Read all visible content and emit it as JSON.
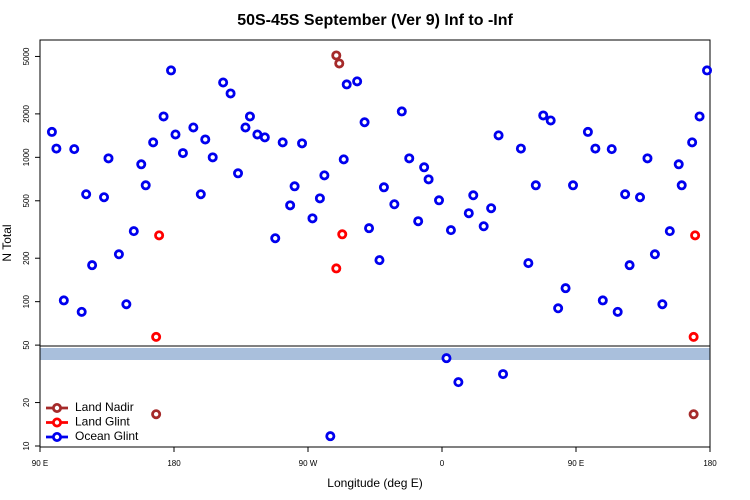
{
  "chart_data": {
    "type": "scatter",
    "title": "50S-45S September (Ver 9)   Inf to -Inf",
    "xlabel": "Longitude (deg E)",
    "ylabel": "N Total",
    "xlim": [
      90,
      540
    ],
    "xticks": [
      {
        "value": 90,
        "label": "90 E"
      },
      180,
      {
        "value": 270,
        "label": "90 W"
      },
      {
        "value": 360,
        "label": "0"
      },
      {
        "value": 450,
        "label": "90 E"
      },
      {
        "value": 540,
        "label": "180"
      }
    ],
    "ylim": [
      10,
      6500
    ],
    "yticks": [
      10,
      20,
      50,
      100,
      200,
      500,
      1000,
      2000,
      5000
    ],
    "log_y": true,
    "legend": "lower left",
    "series": [
      {
        "name": "Land Nadir",
        "color": "#a52a2a",
        "x": [
          289,
          291,
          168,
          529
        ],
        "values": [
          5080,
          4470,
          16.6,
          16.6
        ]
      },
      {
        "name": "Land Glint",
        "color": "#ff0000",
        "x": [
          170,
          289,
          293,
          168,
          529,
          530
        ],
        "values": [
          288,
          170,
          293,
          57,
          57,
          288
        ]
      },
      {
        "name": "Ocean Glint",
        "color": "#0000ee",
        "x": [
          98,
          101,
          106,
          113,
          118,
          121,
          125,
          133,
          136,
          143,
          148,
          153,
          158,
          161,
          166,
          173,
          178,
          181,
          186,
          193,
          198,
          201,
          206,
          213,
          218,
          223,
          228,
          231,
          236,
          241,
          248,
          253,
          258,
          261,
          266,
          273,
          278,
          281,
          294,
          296,
          303,
          308,
          311,
          318,
          321,
          328,
          333,
          338,
          344,
          348,
          351,
          358,
          363,
          366,
          371,
          378,
          381,
          388,
          393,
          398,
          401,
          413,
          418,
          423,
          428,
          433,
          438,
          443,
          448,
          458,
          463,
          468,
          474,
          478,
          483,
          486,
          493,
          498,
          503,
          508,
          513,
          519,
          521,
          528,
          533,
          538,
          285
        ],
        "values": [
          1500,
          1150,
          102,
          1140,
          85,
          555,
          179,
          529,
          984,
          213,
          96,
          308,
          895,
          640,
          1270,
          1920,
          4000,
          1440,
          1070,
          1610,
          555,
          1330,
          1000,
          3300,
          2770,
          775,
          1610,
          1920,
          1440,
          1375,
          275,
          1270,
          465,
          630,
          1250,
          378,
          520,
          750,
          968,
          3200,
          3360,
          1750,
          323,
          194,
          620,
          473,
          2080,
          984,
          361,
          853,
          704,
          504,
          40.6,
          313,
          27.7,
          410,
          546,
          333,
          444,
          1420,
          31.5,
          1150,
          185,
          640,
          1950,
          1800,
          90,
          124,
          640,
          1500,
          1150,
          102,
          1140,
          85,
          555,
          179,
          529,
          984,
          213,
          96,
          308,
          895,
          640,
          1270,
          1920,
          4000,
          11.7
        ]
      }
    ]
  }
}
